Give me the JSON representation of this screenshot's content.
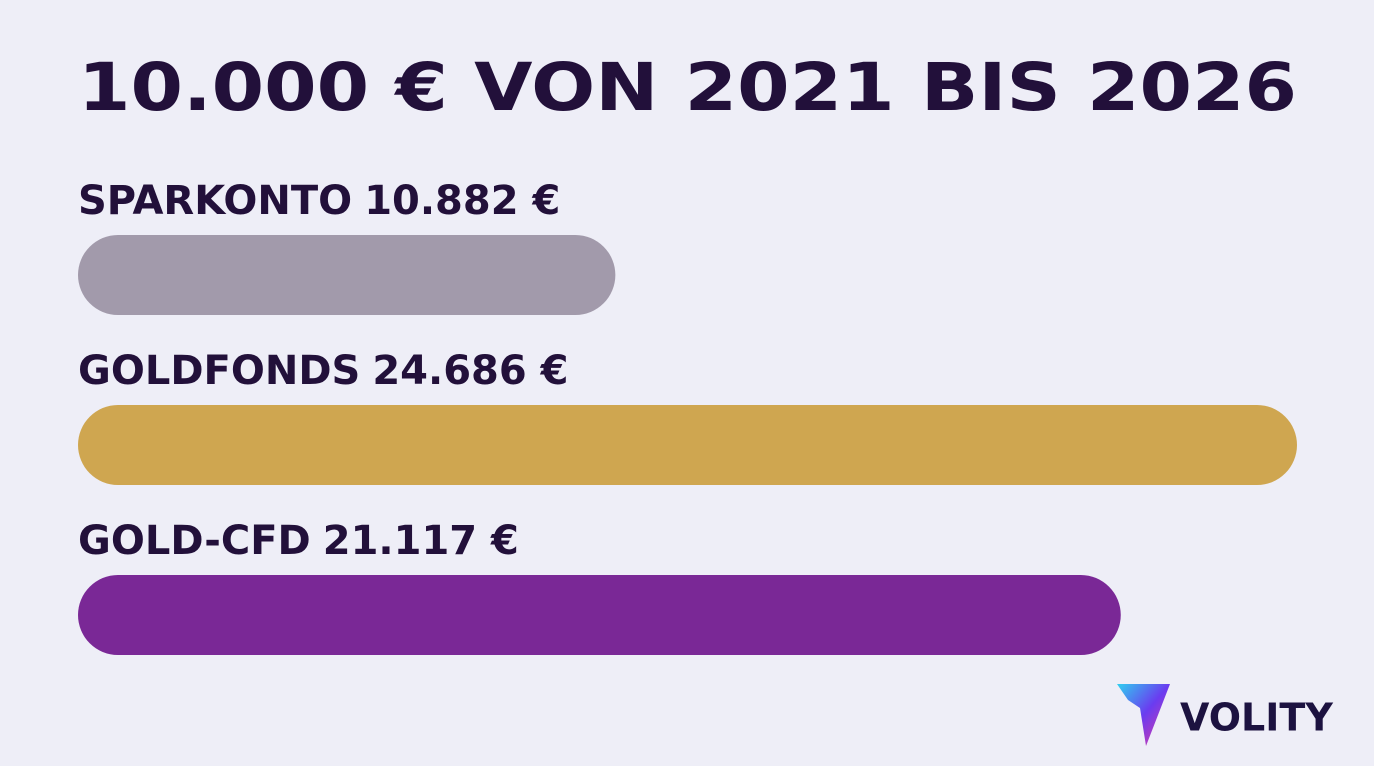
{
  "chart_data": {
    "type": "hbar",
    "title": "10.000 € VON 2021 BIS 2026",
    "categories": [
      "SPARKONTO",
      "GOLDFONDS",
      "GOLD-CFD"
    ],
    "values": [
      10882,
      24686,
      21117
    ],
    "value_labels": [
      "10.882 €",
      "24.686 €",
      "21.117 €"
    ],
    "colors": [
      "#a29aab",
      "#cfa650",
      "#7a2896"
    ]
  },
  "logo": "VOLITY"
}
